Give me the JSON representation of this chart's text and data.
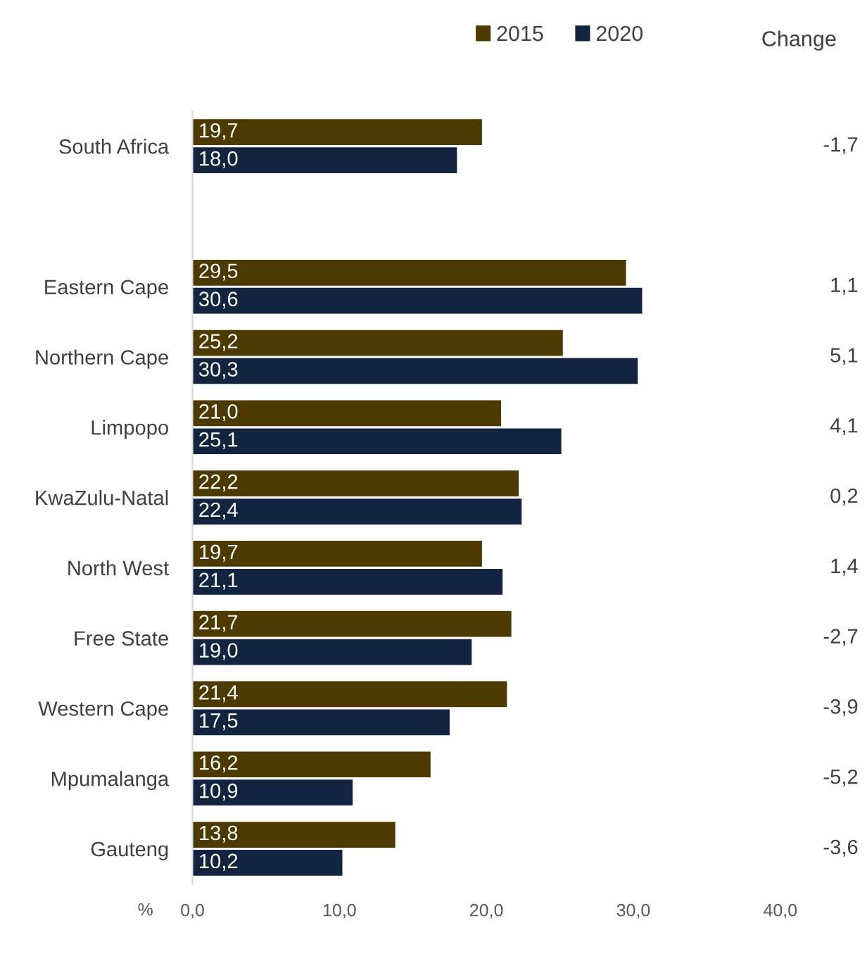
{
  "chart_data": {
    "type": "bar",
    "orientation": "horizontal",
    "xlabel": "%",
    "categories": [
      "South Africa",
      null,
      "Eastern Cape",
      "Northern Cape",
      "Limpopo",
      "KwaZulu-Natal",
      "North West",
      "Free State",
      "Western Cape",
      "Mpumalanga",
      "Gauteng"
    ],
    "series": [
      {
        "name": "2015",
        "color": "#4d3a00",
        "values": [
          19.7,
          null,
          29.5,
          25.2,
          21.0,
          22.2,
          19.7,
          21.7,
          21.4,
          16.2,
          13.8
        ],
        "value_labels": [
          "19,7",
          null,
          "29,5",
          "25,2",
          "21,0",
          "22,2",
          "19,7",
          "21,7",
          "21,4",
          "16,2",
          "13,8"
        ]
      },
      {
        "name": "2020",
        "color": "#12243f",
        "values": [
          18.0,
          null,
          30.6,
          30.3,
          25.1,
          22.4,
          21.1,
          19.0,
          17.5,
          10.9,
          10.2
        ],
        "value_labels": [
          "18,0",
          null,
          "30,6",
          "30,3",
          "25,1",
          "22,4",
          "21,1",
          "19,0",
          "17,5",
          "10,9",
          "10,2"
        ]
      }
    ],
    "xlim": [
      0,
      40
    ],
    "xticks": [
      {
        "value": 0,
        "label": "0,0"
      },
      {
        "value": 10,
        "label": "10,0"
      },
      {
        "value": 20,
        "label": "20,0"
      },
      {
        "value": 30,
        "label": "30,0"
      },
      {
        "value": 40,
        "label": "40,0"
      }
    ],
    "legend": "top right",
    "grid": false,
    "annotations": [
      "Change",
      "-1,7",
      "1,1",
      "5,1",
      "4,1",
      "0,2",
      "1,4",
      "-2,7",
      "-3,9",
      "-5,2",
      "-3,6"
    ]
  }
}
